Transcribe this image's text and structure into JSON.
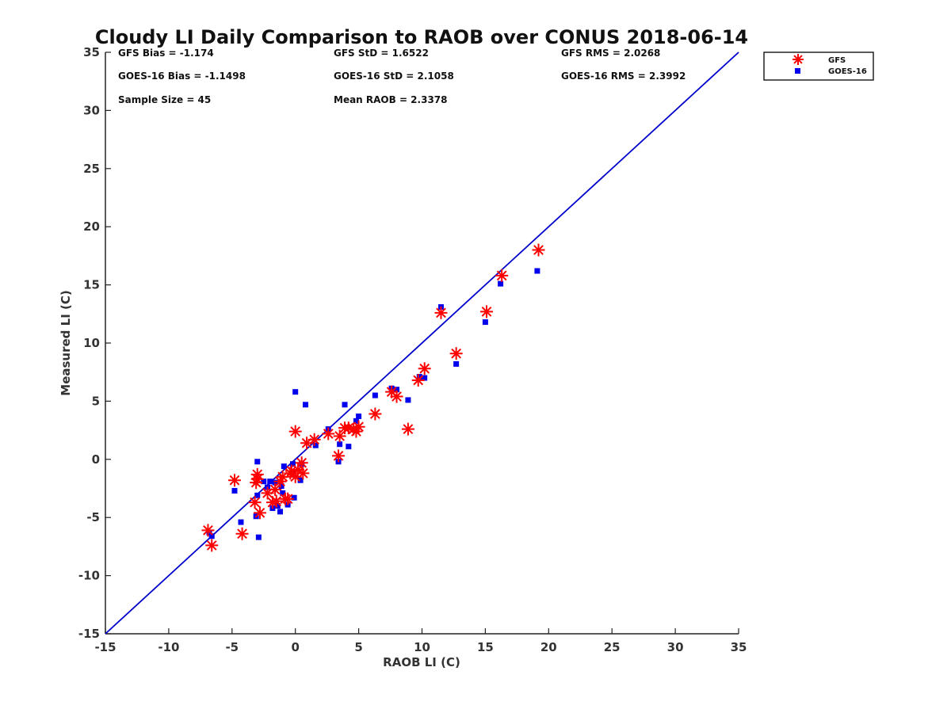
{
  "chart_data": {
    "type": "scatter",
    "title": "Cloudy LI Daily Comparison to RAOB over CONUS 2018-06-14",
    "xlabel": "RAOB LI (C)",
    "ylabel": "Measured LI (C)",
    "xlim": [
      -15,
      35
    ],
    "ylim": [
      -15,
      35
    ],
    "xticks": [
      "-15",
      "-10",
      "-5",
      "0",
      "5",
      "10",
      "15",
      "20",
      "25",
      "30",
      "35"
    ],
    "yticks": [
      "-15",
      "-10",
      "-5",
      "0",
      "5",
      "10",
      "15",
      "20",
      "25",
      "30",
      "35"
    ],
    "grid": false,
    "legend_position": "outside-top-right",
    "stats": [
      "GFS Bias = -1.174",
      "GFS StD = 1.6522",
      "GFS RMS = 2.0268",
      "GOES-16 Bias = -1.1498",
      "GOES-16 StD = 2.1058",
      "GOES-16 RMS = 2.3992",
      "Sample Size = 45",
      "Mean RAOB = 2.3378"
    ],
    "reference_line": {
      "x": [
        -15,
        35
      ],
      "y": [
        -15,
        35
      ],
      "color": "#0000cc"
    },
    "series": [
      {
        "name": "GFS",
        "marker": "asterisk",
        "color": "#ff0000",
        "x": [
          -6.9,
          -6.6,
          -4.2,
          -4.8,
          -3.2,
          -3.0,
          -3.0,
          -2.8,
          -2.2,
          -1.8,
          -1.6,
          -1.2,
          -1.0,
          -0.8,
          -0.6,
          -0.4,
          0.0,
          0.5,
          0.6,
          0.9,
          1.5,
          2.6,
          3.4,
          3.5,
          3.9,
          4.2,
          4.8,
          5.0,
          6.3,
          7.6,
          8.0,
          8.9,
          9.7,
          10.2,
          11.5,
          12.7,
          15.1,
          16.3,
          19.2,
          0.0,
          -0.3,
          -3.1,
          -1.5,
          0.2,
          4.6
        ],
        "y": [
          -6.1,
          -7.4,
          -6.4,
          -1.8,
          -3.7,
          -1.7,
          -1.3,
          -4.6,
          -2.9,
          -3.7,
          -2.6,
          -1.9,
          -1.5,
          -3.4,
          -3.4,
          -1.2,
          2.4,
          -0.3,
          -1.2,
          1.4,
          1.7,
          2.2,
          0.3,
          2.0,
          2.7,
          2.7,
          2.4,
          2.8,
          3.9,
          5.8,
          5.4,
          2.6,
          6.8,
          7.8,
          12.6,
          9.1,
          12.7,
          15.8,
          18.0,
          -1.5,
          -1.0,
          -2.0,
          -3.6,
          -0.9,
          2.6
        ]
      },
      {
        "name": "GOES-16",
        "marker": "square",
        "color": "#0000ee",
        "x": [
          -6.8,
          -6.6,
          -4.8,
          -4.3,
          -3.1,
          -3.0,
          -3.0,
          -2.9,
          -2.5,
          -2.2,
          -2.0,
          -1.8,
          -1.6,
          -1.4,
          -1.2,
          -1.0,
          -0.9,
          -0.6,
          -0.2,
          -0.1,
          0.0,
          0.4,
          0.5,
          0.8,
          1.6,
          2.6,
          3.4,
          3.5,
          3.9,
          4.2,
          4.8,
          5.0,
          6.3,
          7.6,
          8.0,
          8.9,
          9.8,
          10.2,
          11.5,
          12.7,
          15.0,
          16.2,
          19.1,
          -1.1,
          -0.2
        ],
        "y": [
          -6.3,
          -6.6,
          -2.7,
          -5.4,
          -4.9,
          -3.1,
          -0.2,
          -6.7,
          -1.9,
          -2.4,
          -1.9,
          -4.2,
          -2.0,
          -4.0,
          -4.5,
          -2.9,
          -0.6,
          -3.9,
          -0.4,
          -3.3,
          5.8,
          -1.8,
          -0.4,
          4.7,
          1.2,
          2.6,
          -0.2,
          1.3,
          4.7,
          1.1,
          3.3,
          3.7,
          5.5,
          6.1,
          6.0,
          5.1,
          7.1,
          7.0,
          13.1,
          8.2,
          11.8,
          15.1,
          16.2,
          -2.3,
          -1.3
        ]
      }
    ]
  }
}
